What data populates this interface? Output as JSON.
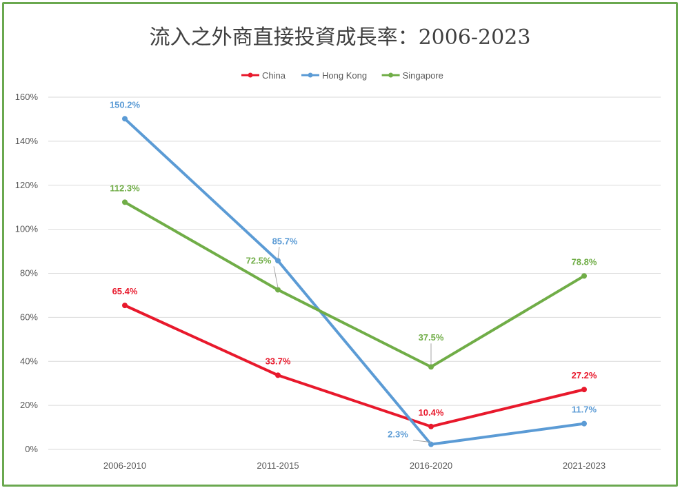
{
  "chart_data": {
    "type": "line",
    "title": "流入之外商直接投資成長率：2006-2023",
    "xlabel": "",
    "ylabel": "",
    "categories": [
      "2006-2010",
      "2011-2015",
      "2016-2020",
      "2021-2023"
    ],
    "ylim": [
      0,
      160
    ],
    "yticks": [
      0,
      20,
      40,
      60,
      80,
      100,
      120,
      140,
      160
    ],
    "ytick_labels": [
      "0%",
      "20%",
      "40%",
      "60%",
      "80%",
      "100%",
      "120%",
      "140%",
      "160%"
    ],
    "grid": true,
    "legend_position": "top",
    "series": [
      {
        "name": "China",
        "color": "#e8192c",
        "values": [
          65.4,
          33.7,
          10.4,
          27.2
        ],
        "labels": [
          "65.4%",
          "33.7%",
          "10.4%",
          "27.2%"
        ]
      },
      {
        "name": "Hong Kong",
        "color": "#5b9bd5",
        "values": [
          150.2,
          85.7,
          2.3,
          11.7
        ],
        "labels": [
          "150.2%",
          "85.7%",
          "2.3%",
          "11.7%"
        ]
      },
      {
        "name": "Singapore",
        "color": "#70ad47",
        "values": [
          112.3,
          72.5,
          37.5,
          78.8
        ],
        "labels": [
          "112.3%",
          "72.5%",
          "37.5%",
          "78.8%"
        ]
      }
    ]
  }
}
